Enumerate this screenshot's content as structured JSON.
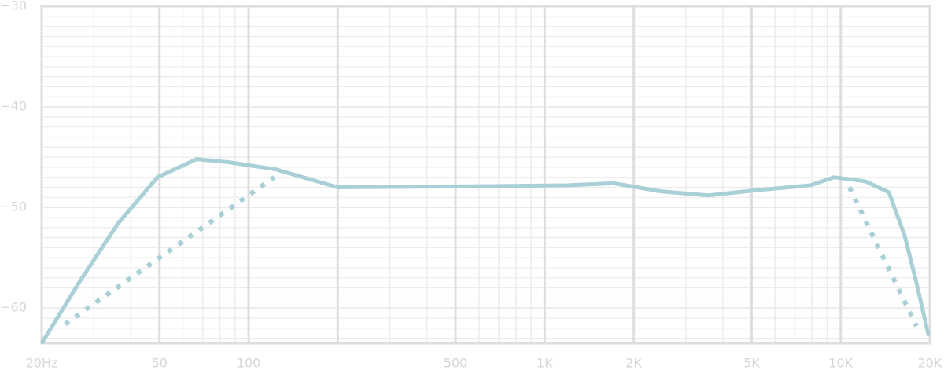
{
  "chart_data": {
    "type": "line",
    "x_log": true,
    "xlim": [
      20,
      20000
    ],
    "ylim": [
      -63.5,
      -30
    ],
    "xticks": [
      {
        "value": 20,
        "label": "20Hz"
      },
      50,
      100,
      500,
      {
        "value": 1000,
        "label": "1K"
      },
      {
        "value": 2000,
        "label": "2K"
      },
      {
        "value": 5000,
        "label": "5K"
      },
      {
        "value": 10000,
        "label": "10K"
      },
      {
        "value": 20000,
        "label": "20K"
      }
    ],
    "x_grid_major": [
      200
    ],
    "x_grid_minor": [
      30,
      40,
      60,
      70,
      80,
      90,
      300,
      400,
      600,
      700,
      800,
      900,
      3000,
      4000,
      6000,
      7000,
      8000,
      9000
    ],
    "yticks": [
      {
        "value": -30,
        "label": "−30"
      },
      {
        "value": -40,
        "label": "−40"
      },
      {
        "value": -50,
        "label": "−50"
      },
      {
        "value": -60,
        "label": "−60"
      }
    ],
    "y_grid_minor": [
      -63,
      -62,
      -61,
      -59,
      -58,
      -57,
      -56,
      -55,
      -54,
      -53,
      -52,
      -51,
      -49,
      -48,
      -47,
      -46,
      -45,
      -44,
      -43,
      -42,
      -41,
      -39,
      -38,
      -37,
      -36,
      -35,
      -34,
      -33,
      -32,
      -31
    ],
    "grid": true,
    "series": [
      {
        "color": "#a9d0d6",
        "style": "solid",
        "x": [
          20.1,
          26.7,
          36.2,
          49.2,
          66.7,
          85.3,
          123,
          200,
          568,
          1183,
          1710,
          2468,
          3563,
          5140,
          7888,
          9480,
          12100,
          14540,
          16440,
          18020,
          19760
        ],
        "values": [
          -63.4,
          -57.5,
          -51.6,
          -47.0,
          -45.2,
          -45.5,
          -46.2,
          -48.0,
          -47.9,
          -47.8,
          -47.6,
          -48.4,
          -48.8,
          -48.3,
          -47.8,
          -47.0,
          -47.4,
          -48.5,
          -52.8,
          -57.5,
          -62.6
        ]
      },
      {
        "color": "#a9d0d6",
        "style": "dotted",
        "x": [
          24.0,
          122
        ],
        "values": [
          -61.6,
          -47.0
        ]
      },
      {
        "color": "#a9d0d6",
        "style": "dotted",
        "x": [
          10700,
          18020
        ],
        "values": [
          -48.0,
          -61.8
        ]
      }
    ]
  }
}
